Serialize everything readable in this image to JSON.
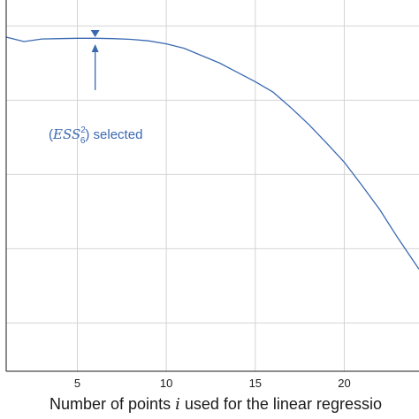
{
  "chart_data": {
    "type": "line",
    "xlabel_prefix": "Number of points ",
    "xlabel_var": "i",
    "xlabel_suffix": " used for the linear regressio",
    "xlim": [
      1,
      24.2
    ],
    "ylim": [
      0,
      1
    ],
    "xticks": [
      5,
      10,
      15,
      20
    ],
    "yticks": [
      0.13,
      0.33,
      0.53,
      0.73,
      0.93
    ],
    "grid": true,
    "series": [
      {
        "color": "#3a69b1",
        "x": [
          1,
          2,
          3,
          4,
          5,
          6,
          7,
          8,
          9,
          10,
          11,
          12,
          13,
          14,
          15,
          16,
          17,
          18,
          19,
          20,
          21,
          22,
          23,
          24.2
        ],
        "y": [
          0.9,
          0.888,
          0.895,
          0.896,
          0.897,
          0.897,
          0.896,
          0.894,
          0.89,
          0.882,
          0.87,
          0.85,
          0.83,
          0.805,
          0.78,
          0.752,
          0.71,
          0.665,
          0.615,
          0.563,
          0.5,
          0.435,
          0.36,
          0.275
        ]
      }
    ],
    "marker": {
      "x": 6,
      "y": 0.9
    },
    "annotation": {
      "text_pre": "(",
      "text_math": "ESS",
      "sup": "2",
      "sub": "6",
      "text_post": ") selected",
      "color": "#3a69b1"
    }
  }
}
